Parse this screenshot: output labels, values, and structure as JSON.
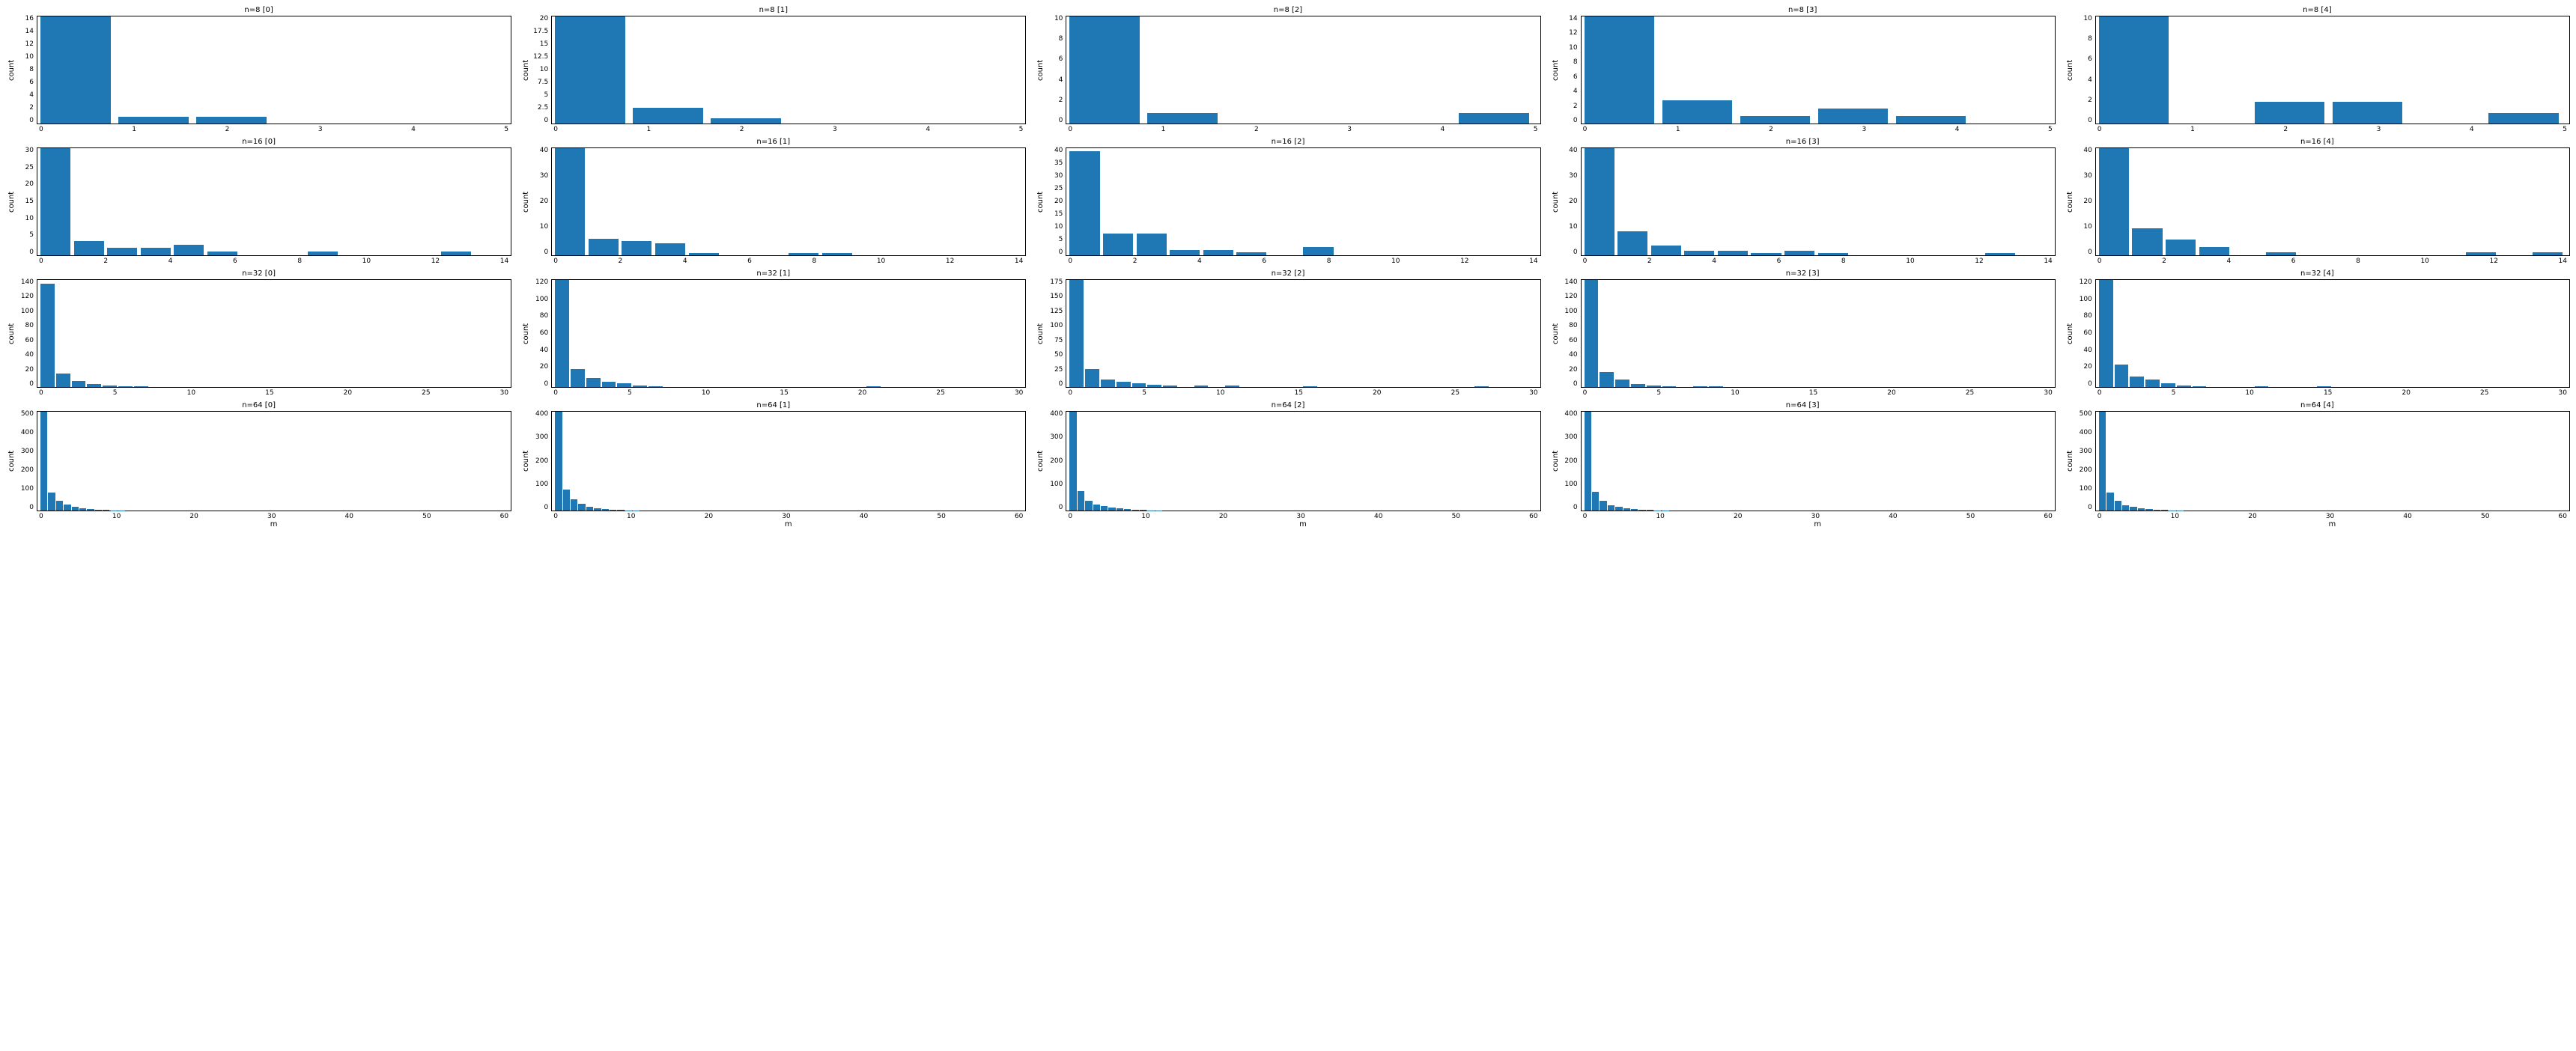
{
  "global": {
    "bar_color": "#1f77b4",
    "background_color": "#ffffff",
    "border_color": "#000000",
    "text_color": "#000000",
    "ylabel": "count",
    "xlabel": "m",
    "title_fontsize": 10,
    "label_fontsize": 10,
    "tick_fontsize": 9
  },
  "charts": [
    [
      {
        "title": "n=8 [0]",
        "type": "bar",
        "xlim": [
          -0.5,
          5.5
        ],
        "xticks": [
          0,
          1,
          2,
          3,
          4,
          5
        ],
        "ylim": [
          0,
          16
        ],
        "yticks": [
          0,
          2,
          4,
          6,
          8,
          10,
          12,
          14,
          16
        ],
        "values": [
          16,
          1,
          1,
          0,
          0,
          0
        ],
        "bar_width": 0.9
      },
      {
        "title": "n=8 [1]",
        "type": "bar",
        "xlim": [
          -0.5,
          5.5
        ],
        "xticks": [
          0,
          1,
          2,
          3,
          4,
          5
        ],
        "ylim": [
          0,
          20
        ],
        "yticks": [
          0.0,
          2.5,
          5.0,
          7.5,
          10.0,
          12.5,
          15.0,
          17.5,
          20.0
        ],
        "values": [
          21,
          3,
          1,
          0,
          0,
          0
        ],
        "bar_width": 0.9
      },
      {
        "title": "n=8 [2]",
        "type": "bar",
        "xlim": [
          -0.5,
          5.5
        ],
        "xticks": [
          0,
          1,
          2,
          3,
          4,
          5
        ],
        "ylim": [
          0,
          10
        ],
        "yticks": [
          0,
          2,
          4,
          6,
          8,
          10
        ],
        "values": [
          10,
          1,
          0,
          0,
          0,
          1
        ],
        "bar_width": 0.9
      },
      {
        "title": "n=8 [3]",
        "type": "bar",
        "xlim": [
          -0.5,
          5.5
        ],
        "xticks": [
          0,
          1,
          2,
          3,
          4,
          5
        ],
        "ylim": [
          0,
          14
        ],
        "yticks": [
          0,
          2,
          4,
          6,
          8,
          10,
          12,
          14
        ],
        "values": [
          14,
          3,
          1,
          2,
          1,
          0
        ],
        "bar_width": 0.9
      },
      {
        "title": "n=8 [4]",
        "type": "bar",
        "xlim": [
          -0.5,
          5.5
        ],
        "xticks": [
          0,
          1,
          2,
          3,
          4,
          5
        ],
        "ylim": [
          0,
          10
        ],
        "yticks": [
          0,
          2,
          4,
          6,
          8,
          10
        ],
        "values": [
          10,
          0,
          2,
          2,
          0,
          1
        ],
        "bar_width": 0.9
      }
    ],
    [
      {
        "title": "n=16 [0]",
        "type": "bar",
        "xlim": [
          -0.5,
          14
        ],
        "xticks": [
          0,
          2,
          4,
          6,
          8,
          10,
          12,
          14
        ],
        "ylim": [
          0,
          30
        ],
        "yticks": [
          0,
          5,
          10,
          15,
          20,
          25,
          30
        ],
        "values": [
          31,
          4,
          2,
          2,
          3,
          1,
          0,
          0,
          1,
          0,
          0,
          0,
          1,
          0
        ],
        "bar_width": 0.9
      },
      {
        "title": "n=16 [1]",
        "type": "bar",
        "xlim": [
          -0.5,
          14
        ],
        "xticks": [
          0,
          2,
          4,
          6,
          8,
          10,
          12,
          14
        ],
        "ylim": [
          0,
          45
        ],
        "yticks": [
          0,
          10,
          20,
          30,
          40
        ],
        "values": [
          47,
          7,
          6,
          5,
          1,
          0,
          0,
          1,
          1,
          0,
          0,
          0,
          0,
          0
        ],
        "bar_width": 0.9
      },
      {
        "title": "n=16 [2]",
        "type": "bar",
        "xlim": [
          -0.5,
          14
        ],
        "xticks": [
          0,
          2,
          4,
          6,
          8,
          10,
          12,
          14
        ],
        "ylim": [
          0,
          40
        ],
        "yticks": [
          0,
          5,
          10,
          15,
          20,
          25,
          30,
          35,
          40
        ],
        "values": [
          39,
          8,
          8,
          2,
          2,
          1,
          0,
          3,
          0,
          0,
          0,
          0,
          0,
          0
        ],
        "bar_width": 0.9
      },
      {
        "title": "n=16 [3]",
        "type": "bar",
        "xlim": [
          -0.5,
          14
        ],
        "xticks": [
          0,
          2,
          4,
          6,
          8,
          10,
          12,
          14
        ],
        "ylim": [
          0,
          45
        ],
        "yticks": [
          0,
          10,
          20,
          30,
          40
        ],
        "values": [
          46,
          10,
          4,
          2,
          2,
          1,
          2,
          1,
          0,
          0,
          0,
          0,
          1,
          0
        ],
        "bar_width": 0.9
      },
      {
        "title": "n=16 [4]",
        "type": "bar",
        "xlim": [
          -0.5,
          14
        ],
        "xticks": [
          0,
          2,
          4,
          6,
          8,
          10,
          12,
          14
        ],
        "ylim": [
          0,
          40
        ],
        "yticks": [
          0,
          10,
          20,
          30,
          40
        ],
        "values": [
          43,
          10,
          6,
          3,
          0,
          1,
          0,
          0,
          0,
          0,
          0,
          1,
          0,
          1
        ],
        "bar_width": 0.9
      }
    ],
    [
      {
        "title": "n=32 [0]",
        "type": "bar",
        "xlim": [
          -0.5,
          30
        ],
        "xticks": [
          0,
          5,
          10,
          15,
          20,
          25,
          30
        ],
        "ylim": [
          0,
          140
        ],
        "yticks": [
          0,
          20,
          40,
          60,
          80,
          100,
          120,
          140
        ],
        "values": [
          135,
          18,
          8,
          4,
          2,
          1,
          1,
          0,
          0,
          0,
          0,
          0,
          0,
          0,
          0,
          0,
          0,
          0,
          0,
          0,
          0,
          0,
          0,
          0,
          0,
          0,
          0,
          0,
          0,
          0
        ],
        "bar_width": 0.9
      },
      {
        "title": "n=32 [1]",
        "type": "bar",
        "xlim": [
          -0.5,
          30
        ],
        "xticks": [
          0,
          5,
          10,
          15,
          20,
          25,
          30
        ],
        "ylim": [
          0,
          120
        ],
        "yticks": [
          0,
          20,
          40,
          60,
          80,
          100,
          120
        ],
        "values": [
          128,
          20,
          10,
          6,
          4,
          2,
          1,
          0,
          0,
          0,
          0,
          0,
          0,
          0,
          0,
          0,
          0,
          0,
          0,
          0,
          1,
          0,
          0,
          0,
          0,
          0,
          0,
          0,
          0,
          0
        ],
        "bar_width": 0.9
      },
      {
        "title": "n=32 [2]",
        "type": "bar",
        "xlim": [
          -0.5,
          30
        ],
        "xticks": [
          0,
          5,
          10,
          15,
          20,
          25,
          30
        ],
        "ylim": [
          0,
          175
        ],
        "yticks": [
          0,
          25,
          50,
          75,
          100,
          125,
          150,
          175
        ],
        "values": [
          180,
          30,
          12,
          8,
          6,
          4,
          2,
          0,
          2,
          0,
          2,
          0,
          0,
          0,
          0,
          1,
          0,
          0,
          0,
          0,
          0,
          0,
          0,
          0,
          0,
          0,
          1,
          0,
          0,
          0
        ],
        "bar_width": 0.9
      },
      {
        "title": "n=32 [3]",
        "type": "bar",
        "xlim": [
          -0.5,
          30
        ],
        "xticks": [
          0,
          5,
          10,
          15,
          20,
          25,
          30
        ],
        "ylim": [
          0,
          140
        ],
        "yticks": [
          0,
          20,
          40,
          60,
          80,
          100,
          120,
          140
        ],
        "values": [
          145,
          20,
          10,
          4,
          2,
          1,
          0,
          1,
          1,
          0,
          0,
          0,
          0,
          0,
          0,
          0,
          0,
          0,
          0,
          0,
          0,
          0,
          0,
          0,
          0,
          0,
          0,
          0,
          0,
          0
        ],
        "bar_width": 0.9
      },
      {
        "title": "n=32 [4]",
        "type": "bar",
        "xlim": [
          -0.5,
          30
        ],
        "xticks": [
          0,
          5,
          10,
          15,
          20,
          25,
          30
        ],
        "ylim": [
          0,
          120
        ],
        "yticks": [
          0,
          20,
          40,
          60,
          80,
          100,
          120
        ],
        "values": [
          122,
          25,
          12,
          8,
          4,
          2,
          1,
          0,
          0,
          0,
          1,
          0,
          0,
          0,
          1,
          0,
          0,
          0,
          0,
          0,
          0,
          0,
          0,
          0,
          0,
          0,
          0,
          0,
          0,
          0
        ],
        "bar_width": 0.9
      }
    ],
    [
      {
        "title": "n=64 [0]",
        "type": "bar",
        "xlim": [
          -0.5,
          60
        ],
        "xticks": [
          0,
          10,
          20,
          30,
          40,
          50,
          60
        ],
        "ylim": [
          0,
          500
        ],
        "yticks": [
          0,
          100,
          200,
          300,
          400,
          500
        ],
        "values": [
          500,
          90,
          50,
          30,
          18,
          10,
          6,
          4,
          2,
          1,
          1,
          0,
          0,
          0,
          0,
          0,
          0,
          0,
          0,
          0,
          0,
          0,
          0,
          0,
          0,
          0,
          0,
          0,
          0,
          0,
          0,
          0,
          0,
          0,
          0,
          0,
          0,
          0,
          0,
          0,
          0,
          0,
          0,
          0,
          0,
          0,
          0,
          0,
          0,
          0,
          0,
          0,
          0,
          0,
          0,
          0,
          0,
          0,
          0,
          0
        ],
        "bar_width": 0.9,
        "show_xlabel": true
      },
      {
        "title": "n=64 [1]",
        "type": "bar",
        "xlim": [
          -0.5,
          60
        ],
        "xticks": [
          0,
          10,
          20,
          30,
          40,
          50,
          60
        ],
        "ylim": [
          0,
          400
        ],
        "yticks": [
          0,
          100,
          200,
          300,
          400
        ],
        "values": [
          440,
          85,
          45,
          28,
          16,
          9,
          5,
          3,
          2,
          1,
          1,
          0,
          0,
          0,
          0,
          0,
          0,
          0,
          0,
          0,
          0,
          0,
          0,
          0,
          0,
          0,
          0,
          0,
          0,
          0,
          0,
          0,
          0,
          0,
          0,
          0,
          0,
          0,
          0,
          0,
          0,
          0,
          0,
          0,
          0,
          0,
          0,
          0,
          0,
          0,
          0,
          0,
          0,
          0,
          0,
          0,
          0,
          0,
          0,
          0
        ],
        "bar_width": 0.9,
        "show_xlabel": true
      },
      {
        "title": "n=64 [2]",
        "type": "bar",
        "xlim": [
          -0.5,
          60
        ],
        "xticks": [
          0,
          10,
          20,
          30,
          40,
          50,
          60
        ],
        "ylim": [
          0,
          400
        ],
        "yticks": [
          0,
          100,
          200,
          300,
          400
        ],
        "values": [
          450,
          80,
          40,
          25,
          18,
          12,
          8,
          5,
          3,
          2,
          1,
          1,
          0,
          0,
          0,
          0,
          0,
          0,
          0,
          0,
          0,
          0,
          0,
          0,
          0,
          0,
          0,
          0,
          0,
          0,
          0,
          0,
          0,
          0,
          0,
          0,
          0,
          0,
          0,
          0,
          0,
          0,
          0,
          0,
          0,
          0,
          0,
          0,
          0,
          0,
          0,
          0,
          0,
          0,
          0,
          0,
          0,
          0,
          0,
          0
        ],
        "bar_width": 0.9,
        "show_xlabel": true
      },
      {
        "title": "n=64 [3]",
        "type": "bar",
        "xlim": [
          -0.5,
          60
        ],
        "xticks": [
          0,
          10,
          20,
          30,
          40,
          50,
          60
        ],
        "ylim": [
          0,
          400
        ],
        "yticks": [
          0,
          100,
          200,
          300,
          400
        ],
        "values": [
          445,
          75,
          38,
          22,
          14,
          8,
          5,
          3,
          2,
          1,
          1,
          0,
          0,
          0,
          0,
          0,
          0,
          0,
          0,
          0,
          0,
          0,
          0,
          0,
          0,
          0,
          0,
          0,
          0,
          0,
          0,
          0,
          0,
          0,
          0,
          0,
          0,
          0,
          0,
          0,
          0,
          0,
          0,
          0,
          0,
          0,
          0,
          0,
          0,
          0,
          0,
          0,
          0,
          0,
          0,
          0,
          0,
          0,
          0,
          0
        ],
        "bar_width": 0.9,
        "show_xlabel": true
      },
      {
        "title": "n=64 [4]",
        "type": "bar",
        "xlim": [
          -0.5,
          60
        ],
        "xticks": [
          0,
          10,
          20,
          30,
          40,
          50,
          60
        ],
        "ylim": [
          0,
          500
        ],
        "yticks": [
          0,
          100,
          200,
          300,
          400,
          500
        ],
        "values": [
          560,
          90,
          48,
          28,
          18,
          10,
          6,
          4,
          2,
          1,
          1,
          0,
          0,
          0,
          0,
          0,
          0,
          0,
          0,
          0,
          0,
          0,
          0,
          0,
          0,
          0,
          0,
          0,
          0,
          0,
          0,
          0,
          0,
          0,
          0,
          0,
          0,
          0,
          0,
          0,
          0,
          0,
          0,
          0,
          0,
          0,
          0,
          0,
          0,
          0,
          0,
          0,
          0,
          0,
          0,
          0,
          0,
          0,
          0,
          0
        ],
        "bar_width": 0.9,
        "show_xlabel": true
      }
    ]
  ]
}
